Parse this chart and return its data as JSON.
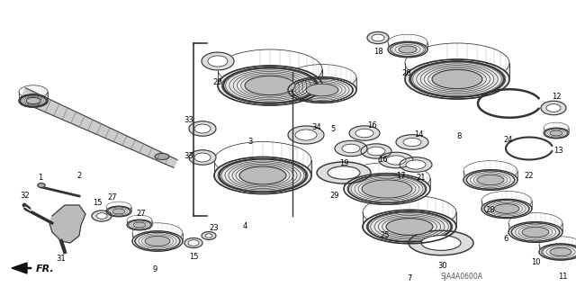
{
  "background_color": "#ffffff",
  "diagram_code": "SJA4A0600A",
  "fr_label": "FR.",
  "fig_width": 6.4,
  "fig_height": 3.19,
  "dpi": 100,
  "label_fontsize": 6.0,
  "label_color": "#000000",
  "gear_color": "#333333",
  "shaft_color": "#555555"
}
